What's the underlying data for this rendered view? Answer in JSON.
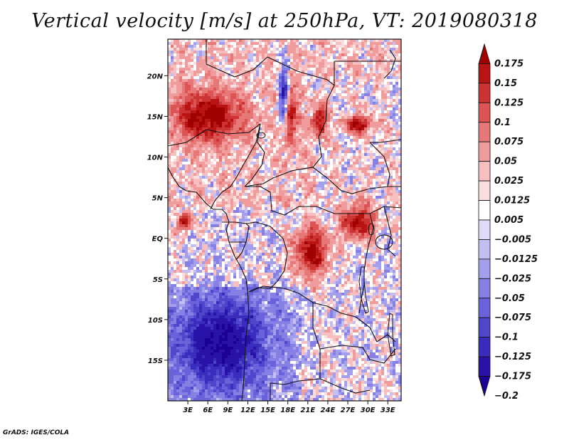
{
  "title": "Vertical velocity [m/s] at 250hPa, VT: 2019080318",
  "credit": "GrADS: IGES/COLA",
  "map": {
    "region": "Central Africa",
    "lon_range": [
      0,
      35
    ],
    "lat_range": [
      -20,
      24.5
    ],
    "lat_ticks": [
      {
        "lat": 20,
        "label": "20N"
      },
      {
        "lat": 15,
        "label": "15N"
      },
      {
        "lat": 10,
        "label": "10N"
      },
      {
        "lat": 5,
        "label": "5N"
      },
      {
        "lat": 0,
        "label": "EQ"
      },
      {
        "lat": -5,
        "label": "5S"
      },
      {
        "lat": -10,
        "label": "10S"
      },
      {
        "lat": -15,
        "label": "15S"
      }
    ],
    "lon_ticks": [
      {
        "lon": 3,
        "label": "3E"
      },
      {
        "lon": 6,
        "label": "6E"
      },
      {
        "lon": 9,
        "label": "9E"
      },
      {
        "lon": 12,
        "label": "12E"
      },
      {
        "lon": 15,
        "label": "15E"
      },
      {
        "lon": 18,
        "label": "18E"
      },
      {
        "lon": 21,
        "label": "21E"
      },
      {
        "lon": 24,
        "label": "24E"
      },
      {
        "lon": 27,
        "label": "27E"
      },
      {
        "lon": 30,
        "label": "30E"
      },
      {
        "lon": 33,
        "label": "33E"
      }
    ],
    "features": [
      {
        "name": "strong-ascent-chad",
        "lon": 18.2,
        "lat": 15.0,
        "rx": 1.0,
        "ry": 3.5,
        "sign": 1
      },
      {
        "name": "strong-ascent-sudan",
        "lon": 22.8,
        "lat": 14.5,
        "rx": 1.0,
        "ry": 1.8,
        "sign": 1
      },
      {
        "name": "strong-descent-chad",
        "lon": 17.5,
        "lat": 17.0,
        "rx": 0.8,
        "ry": 4.0,
        "sign": -1
      },
      {
        "name": "ascent-east-sudan",
        "lon": 28.5,
        "lat": 14.0,
        "rx": 2.0,
        "ry": 1.0,
        "sign": 1
      },
      {
        "name": "ascent-great-lakes",
        "lon": 28.5,
        "lat": 2.0,
        "rx": 2.5,
        "ry": 2.0,
        "sign": 1
      },
      {
        "name": "ascent-congo-basin",
        "lon": 21.5,
        "lat": -1.5,
        "rx": 2.5,
        "ry": 3.0,
        "sign": 1
      },
      {
        "name": "ascent-gabon-coast",
        "lon": 2.5,
        "lat": 2.0,
        "rx": 1.0,
        "ry": 1.0,
        "sign": 1
      },
      {
        "name": "ascent-sahel-west",
        "lon": 6.0,
        "lat": 15.0,
        "rx": 5.0,
        "ry": 3.0,
        "sign": 1
      },
      {
        "name": "descent-south",
        "lon": 8.0,
        "lat": -13.0,
        "rx": 6.0,
        "ry": 5.0,
        "sign": -1
      }
    ]
  },
  "colorbar": {
    "levels": [
      {
        "label": "0.175",
        "color": "#a00000"
      },
      {
        "label": "0.15",
        "color": "#b81414"
      },
      {
        "label": "0.125",
        "color": "#cc3333"
      },
      {
        "label": "0.1",
        "color": "#dc5454"
      },
      {
        "label": "0.075",
        "color": "#e67878"
      },
      {
        "label": "0.05",
        "color": "#f09c9c"
      },
      {
        "label": "0.025",
        "color": "#f7bfbf"
      },
      {
        "label": "0.0125",
        "color": "#fbdede"
      },
      {
        "label": "0.005",
        "color": "#ffffff"
      },
      {
        "label": "−0.005",
        "color": "#dedcf8"
      },
      {
        "label": "−0.0125",
        "color": "#c3bff2"
      },
      {
        "label": "−0.025",
        "color": "#a49fec"
      },
      {
        "label": "−0.05",
        "color": "#8680e4"
      },
      {
        "label": "−0.075",
        "color": "#6a62da"
      },
      {
        "label": "−0.1",
        "color": "#5046cc"
      },
      {
        "label": "−0.125",
        "color": "#3a2cbc"
      },
      {
        "label": "−0.175",
        "color": "#2812a8"
      },
      {
        "label": "−0.2",
        "color": "#1c0094"
      }
    ]
  }
}
